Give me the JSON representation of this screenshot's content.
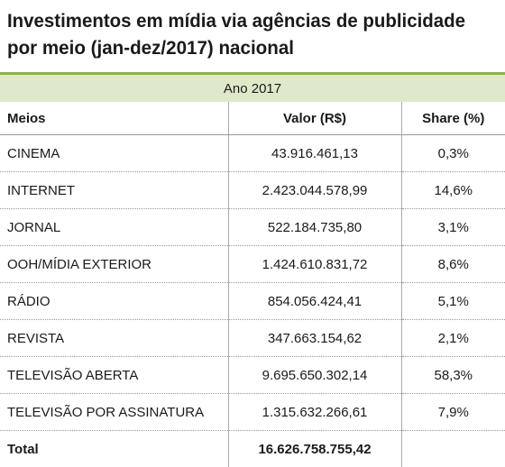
{
  "header": {
    "title_lines": [
      "Investimentos em mídia via agências de publicidade",
      "por meio (jan-dez/2017) nacional"
    ]
  },
  "table": {
    "band": "Ano 2017",
    "columns": [
      "Meios",
      "Valor (R$)",
      "Share (%)"
    ],
    "rows": [
      [
        "CINEMA",
        "43.916.461,13",
        "0,3%"
      ],
      [
        "INTERNET",
        "2.423.044.578,99",
        "14,6%"
      ],
      [
        "JORNAL",
        "522.184.735,80",
        "3,1%"
      ],
      [
        "OOH/MÍDIA EXTERIOR",
        "1.424.610.831,72",
        "8,6%"
      ],
      [
        "RÁDIO",
        "854.056.424,41",
        "5,1%"
      ],
      [
        "REVISTA",
        "347.663.154,62",
        "2,1%"
      ],
      [
        "TELEVISÃO ABERTA",
        "9.695.650.302,14",
        "58,3%"
      ],
      [
        "TELEVISÃO POR ASSINATURA",
        "1.315.632.266,61",
        "7,9%"
      ]
    ],
    "total": [
      "Total",
      "16.626.758.755,42"
    ]
  }
}
